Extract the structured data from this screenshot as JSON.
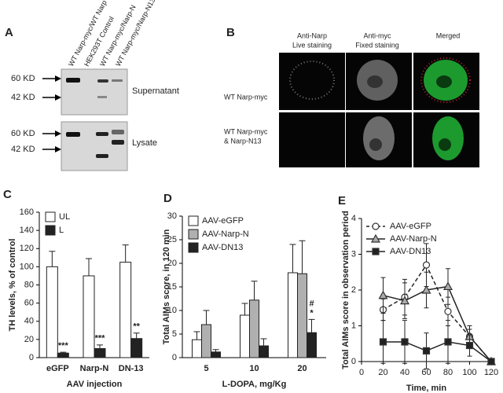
{
  "panels": {
    "A": {
      "label": "A",
      "lanes": [
        "WT Narp-myc/WT Narp",
        "HEK293T Control",
        "WT Narp-myc/Narp-N",
        "WT Narp-myc/Narp-N13"
      ],
      "markers_top": [
        "60 KD",
        "42 KD"
      ],
      "markers_bottom": [
        "60 KD",
        "42 KD"
      ],
      "blots": [
        "Supernatant",
        "Lysate"
      ]
    },
    "B": {
      "label": "B",
      "columns": [
        [
          "Anti-Narp",
          "Live staining"
        ],
        [
          "Anti-myc",
          "Fixed staining"
        ],
        [
          "Merged"
        ]
      ],
      "rows": [
        [
          "WT Narp-myc"
        ],
        [
          "WT Narp-myc",
          "& Narp-N13"
        ]
      ]
    }
  },
  "chart_data": [
    {
      "type": "bar",
      "panel_label": "C",
      "y_label": "TH levels, % of control",
      "x_label": "AAV injection",
      "categories": [
        "eGFP",
        "Narp-N",
        "DN-13"
      ],
      "series": [
        {
          "name": "UL",
          "color": "#ffffff",
          "values": [
            100,
            90,
            105
          ],
          "errors": [
            17,
            19,
            19
          ]
        },
        {
          "name": "L",
          "color": "#222222",
          "values": [
            5,
            10,
            21
          ],
          "errors": [
            1,
            4,
            6
          ],
          "significance": [
            "***",
            "***",
            "**"
          ]
        }
      ],
      "ylim": [
        0,
        160
      ],
      "yticks": [
        0,
        20,
        40,
        60,
        80,
        100,
        120,
        140,
        160
      ]
    },
    {
      "type": "bar",
      "panel_label": "D",
      "y_label": "Total AIMs score, in 120 min",
      "x_label": "L-DOPA, mg/Kg",
      "categories": [
        "5",
        "10",
        "20"
      ],
      "series": [
        {
          "name": "AAV-eGFP",
          "color": "#ffffff",
          "values": [
            3.8,
            9,
            18
          ],
          "errors": [
            1.7,
            2.5,
            6
          ]
        },
        {
          "name": "AAV-Narp-N",
          "color": "#b0b0b0",
          "values": [
            7,
            12.2,
            17.8
          ],
          "errors": [
            3,
            4,
            7
          ]
        },
        {
          "name": "AAV-DN13",
          "color": "#222222",
          "values": [
            1.2,
            2.5,
            5.3
          ],
          "errors": [
            0.5,
            1.5,
            2.8
          ],
          "significance": [
            null,
            null,
            [
              "#",
              "*"
            ]
          ]
        }
      ],
      "ylim": [
        0,
        30
      ],
      "yticks": [
        0,
        5,
        10,
        15,
        20,
        25,
        30
      ]
    },
    {
      "type": "line",
      "panel_label": "E",
      "y_label": "Total AIMs score in observation period",
      "x_label": "Time, min",
      "x": [
        20,
        40,
        60,
        80,
        100,
        120
      ],
      "series": [
        {
          "name": "AAV-eGFP",
          "color": "#ffffff",
          "marker": "circle",
          "dashed": true,
          "values": [
            1.45,
            1.8,
            2.7,
            1.4,
            0.7,
            0
          ],
          "errors": [
            0.3,
            0.5,
            0.6,
            0.4,
            0.3,
            0
          ]
        },
        {
          "name": "AAV-Narp-N",
          "color": "#aaaaaa",
          "marker": "triangle",
          "dashed": false,
          "values": [
            1.85,
            1.7,
            2.0,
            2.1,
            0.7,
            0
          ],
          "errors": [
            0.5,
            0.5,
            0.5,
            0.5,
            0.2,
            0
          ]
        },
        {
          "name": "AAV-DN13",
          "color": "#222222",
          "marker": "square",
          "dashed": false,
          "values": [
            0.55,
            0.55,
            0.3,
            0.55,
            0.45,
            0
          ],
          "errors": [
            0.6,
            0.6,
            0.5,
            0.6,
            0.3,
            0
          ]
        }
      ],
      "xlim": [
        0,
        120
      ],
      "xticks": [
        0,
        20,
        40,
        60,
        80,
        100,
        120
      ],
      "ylim": [
        0,
        4
      ],
      "yticks": [
        0,
        1,
        2,
        3,
        4
      ]
    }
  ]
}
